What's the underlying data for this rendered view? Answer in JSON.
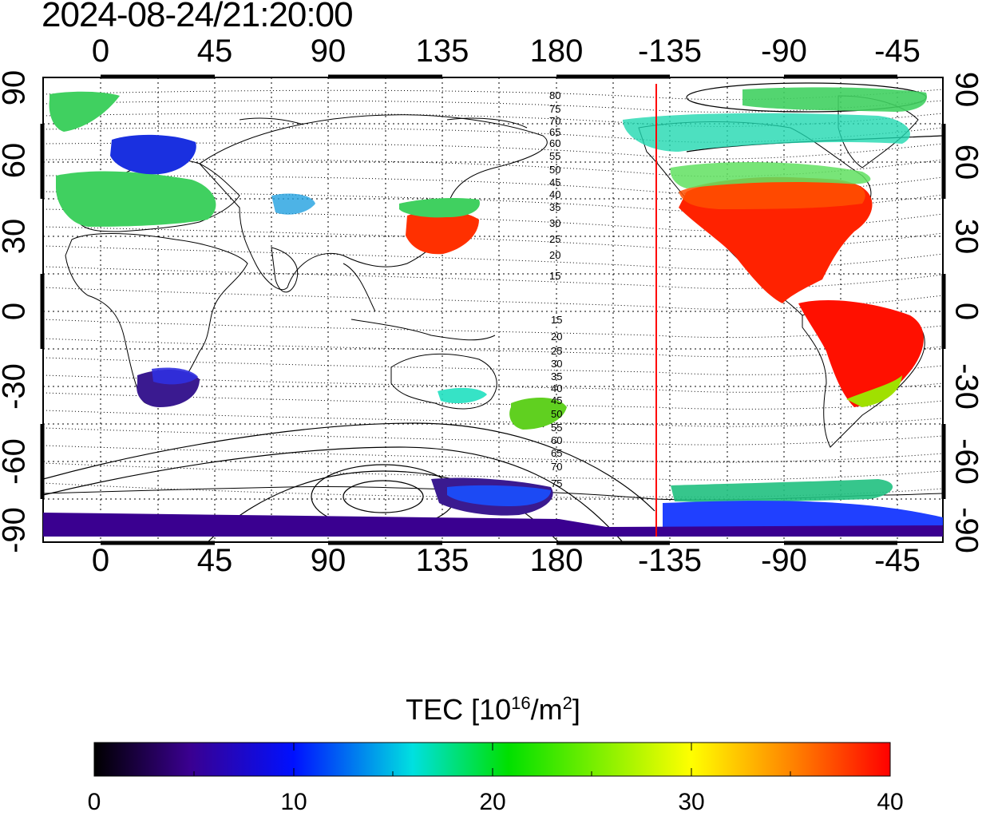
{
  "title": "2024-08-24/21:20:00",
  "x_ticks": [
    "0",
    "45",
    "90",
    "135",
    "180",
    "-135",
    "-90",
    "-45"
  ],
  "y_ticks_left": [
    "90",
    "60",
    "30",
    "0",
    "-30",
    "-60",
    "-90"
  ],
  "y_ticks_right": [
    "90",
    "60",
    "30",
    "0",
    "-30",
    "-60",
    "-90"
  ],
  "contour_labels_north": [
    "80",
    "75",
    "70",
    "65",
    "60",
    "55",
    "50",
    "45",
    "40",
    "35",
    "30",
    "25",
    "20",
    "15"
  ],
  "contour_labels_south": [
    "15",
    "20",
    "25",
    "30",
    "35",
    "40",
    "45",
    "50",
    "55",
    "60",
    "65",
    "70",
    "75"
  ],
  "colorbar": {
    "label_prefix": "TEC  [10",
    "label_exp": "16",
    "label_mid": "/m",
    "label_exp2": "2",
    "label_suffix": "]",
    "ticks": [
      "0",
      "10",
      "20",
      "30",
      "40"
    ],
    "colors": [
      "#000000",
      "#3a0090",
      "#0010ff",
      "#00e0e0",
      "#00e000",
      "#ffff00",
      "#ff8000",
      "#ff0000"
    ]
  },
  "colors": {
    "terminator": "#ff0000",
    "frame": "#000000"
  },
  "terminator_longitude": -139
}
